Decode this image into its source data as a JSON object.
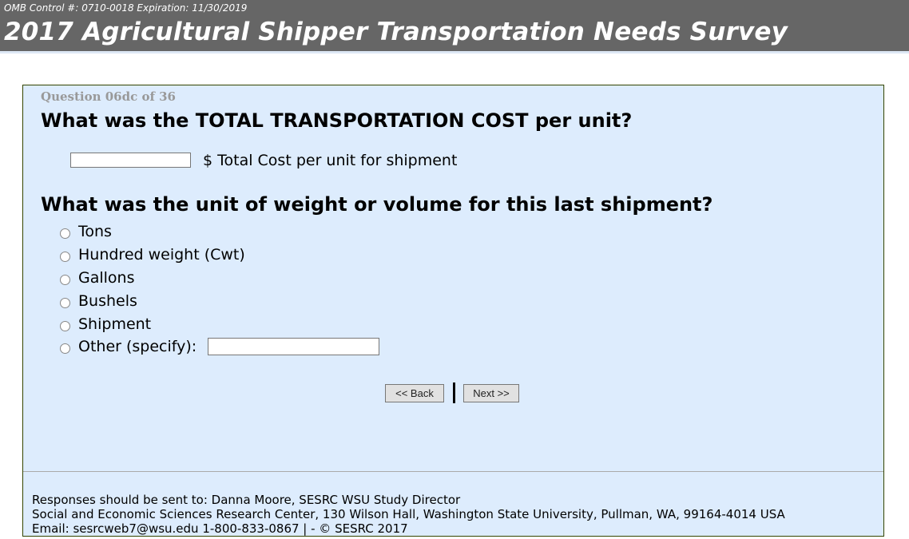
{
  "header": {
    "omb": "OMB Control #: 0710-0018 Expiration: 11/30/2019",
    "title": "2017 Agricultural Shipper Transportation Needs Survey"
  },
  "question_number": "Question 06dc of 36",
  "q1": {
    "text": "What was the TOTAL TRANSPORTATION COST per unit?",
    "input_value": "",
    "input_label": "$ Total Cost per unit for shipment"
  },
  "q2": {
    "text": "What was the unit of weight or volume for this last shipment?",
    "options": [
      "Tons",
      "Hundred weight (Cwt)",
      "Gallons",
      "Bushels",
      "Shipment",
      "Other (specify):"
    ],
    "other_value": ""
  },
  "nav": {
    "back": "<< Back",
    "next": "Next >>"
  },
  "footer": {
    "line1": "Responses should be sent to: Danna Moore, SESRC WSU Study Director",
    "line2": "Social and Economic Sciences Research Center, 130 Wilson Hall, Washington State University, Pullman, WA, 99164-4014 USA",
    "line3": "Email: sesrcweb7@wsu.edu 1-800-833-0867 | - © SESRC 2017"
  }
}
